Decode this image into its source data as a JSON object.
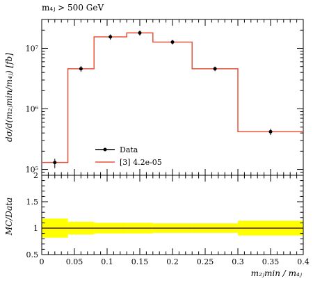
{
  "chart_data": [
    {
      "type": "line",
      "title": "m_4j > 500 GeV",
      "title_display": "m₄ⱼ > 500 GeV",
      "ylabel": "dσ/d(m₂ⱼmin/m₄ⱼ) [fb]",
      "yscale": "log",
      "ylim": [
        80000,
        30000000
      ],
      "xlim": [
        0,
        0.4
      ],
      "y_ticks": [
        {
          "value": 100000,
          "label": "10⁵"
        },
        {
          "value": 1000000,
          "label": "10⁶"
        },
        {
          "value": 10000000,
          "label": "10⁷"
        }
      ],
      "legend": {
        "placement": "lower-center",
        "entries": [
          "Data",
          "[3] 4.2e-05"
        ]
      },
      "series": [
        {
          "name": "Data",
          "kind": "points",
          "color": "#000000",
          "x": [
            0.02,
            0.06,
            0.105,
            0.15,
            0.2,
            0.265,
            0.35
          ],
          "y": [
            130000,
            4600000,
            15500000,
            18000000,
            12700000,
            4600000,
            420000
          ],
          "y_err_low": [
            105000,
            4100000,
            13900000,
            16200000,
            11600000,
            4200000,
            370000
          ],
          "y_err_high": [
            150000,
            5100000,
            17000000,
            19700000,
            13800000,
            5000000,
            470000
          ]
        },
        {
          "name": "[3] 4.2e-05",
          "kind": "step",
          "color": "#e8533a",
          "bin_edges": [
            0,
            0.04,
            0.08,
            0.13,
            0.17,
            0.23,
            0.3,
            0.4
          ],
          "values": [
            130000,
            4600000,
            15500000,
            18000000,
            12700000,
            4600000,
            420000
          ]
        }
      ]
    },
    {
      "type": "line",
      "ylabel": "MC/Data",
      "xlabel": "m₂ⱼmin / m₄ⱼ",
      "xlim": [
        0,
        0.4
      ],
      "ylim": [
        0.5,
        2
      ],
      "y_ticks": [
        {
          "value": 0.5,
          "label": "0.5"
        },
        {
          "value": 1,
          "label": "1"
        },
        {
          "value": 1.5,
          "label": "1.5"
        },
        {
          "value": 2,
          "label": "2"
        }
      ],
      "x_ticks": [
        {
          "value": 0,
          "label": "0"
        },
        {
          "value": 0.05,
          "label": "0.05"
        },
        {
          "value": 0.1,
          "label": "0.1"
        },
        {
          "value": 0.15,
          "label": "0.15"
        },
        {
          "value": 0.2,
          "label": "0.2"
        },
        {
          "value": 0.25,
          "label": "0.25"
        },
        {
          "value": 0.3,
          "label": "0.3"
        },
        {
          "value": 0.35,
          "label": "0.35"
        },
        {
          "value": 0.4,
          "label": "0.4"
        }
      ],
      "band_color": "#ffff00",
      "series": [
        {
          "name": "[3] 4.2e-05",
          "kind": "step",
          "color": "#e8533a",
          "bin_edges": [
            0,
            0.04,
            0.08,
            0.13,
            0.17,
            0.23,
            0.3,
            0.4
          ],
          "values": [
            1,
            1,
            1,
            1,
            1,
            1,
            1
          ]
        }
      ],
      "uncertainty_band": {
        "bin_edges": [
          0,
          0.04,
          0.08,
          0.13,
          0.17,
          0.23,
          0.3,
          0.4
        ],
        "low": [
          0.82,
          0.88,
          0.9,
          0.9,
          0.91,
          0.91,
          0.86
        ],
        "high": [
          1.18,
          1.12,
          1.1,
          1.1,
          1.09,
          1.09,
          1.14
        ]
      }
    }
  ]
}
